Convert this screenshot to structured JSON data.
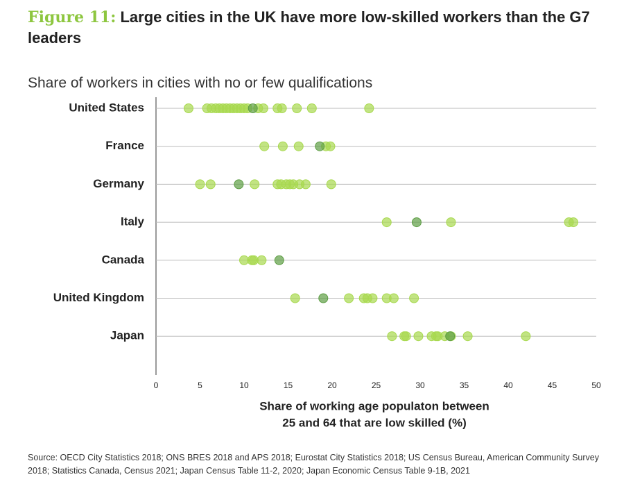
{
  "chart_data": {
    "type": "strip",
    "figure_label": "Figure 11:",
    "title": "Large cities in the UK have more low-skilled workers than the G7 leaders",
    "subtitle": "Share of workers in cities with no or few qualifications",
    "xlabel": [
      "Share of working age populaton between",
      "25 and 64 that are low skilled (%)"
    ],
    "source": "Source: OECD City Statistics 2018; ONS BRES 2018 and APS 2018; Eurostat City Statistics 2018; US Census Bureau, American Community Survey 2018; Statistics Canada, Census 2021; Japan Census Table 11-2, 2020; Japan Economic Census Table 9-1B, 2021",
    "categories": [
      "United States",
      "France",
      "Germany",
      "Italy",
      "Canada",
      "United Kingdom",
      "Japan"
    ],
    "series": [
      {
        "color": "#a8d94f",
        "values": [
          [
            3.7,
            5.8,
            6.3,
            6.8,
            7.2,
            7.6,
            8,
            8.4,
            8.8,
            9.2,
            9.6,
            10,
            10.4,
            11.6,
            12.2,
            13.8,
            14.3,
            16,
            17.7,
            24.2
          ],
          [
            12.3,
            14.4,
            16.2,
            19.3,
            19.8
          ],
          [
            5,
            6.2,
            11.2,
            13.8,
            14.2,
            14.8,
            15.2,
            15.6,
            16.3,
            17,
            19.9
          ],
          [
            26.2,
            33.5,
            46.9,
            47.4
          ],
          [
            10,
            10.9,
            11.1,
            12
          ],
          [
            15.8,
            21.9,
            23.6,
            24,
            24.6,
            26.2,
            27,
            29.3
          ],
          [
            26.8,
            28.2,
            28.4,
            29.8,
            31.3,
            31.8,
            32,
            32.8,
            33.5,
            35.4,
            42
          ]
        ]
      },
      {
        "color": "#5e9e45",
        "values": [
          [
            11
          ],
          [
            18.6
          ],
          [
            9.4
          ],
          [
            29.6
          ],
          [
            14
          ],
          [
            19
          ],
          [
            33.4
          ]
        ]
      }
    ],
    "xlim": [
      0,
      50
    ],
    "xticks": [
      0,
      5,
      10,
      15,
      20,
      25,
      30,
      35,
      40,
      45,
      50
    ],
    "grid": true
  }
}
